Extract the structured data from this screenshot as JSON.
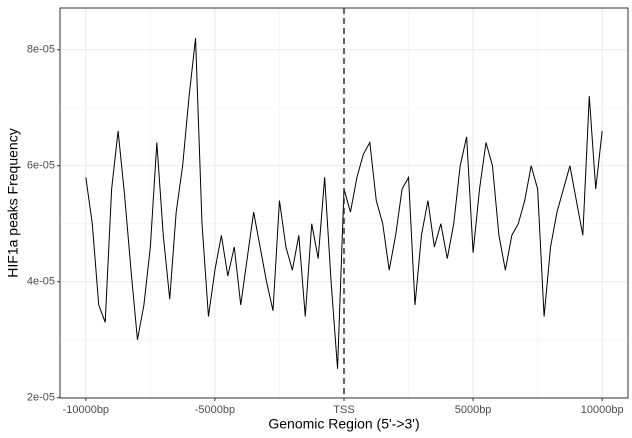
{
  "chart_data": {
    "type": "line",
    "x_label": "Genomic Region (5'->3')",
    "y_label": "HIF1a peaks Frequency",
    "x": [
      -10000,
      -9750,
      -9500,
      -9250,
      -9000,
      -8750,
      -8500,
      -8250,
      -8000,
      -7750,
      -7500,
      -7250,
      -7000,
      -6750,
      -6500,
      -6250,
      -6000,
      -5750,
      -5500,
      -5250,
      -5000,
      -4750,
      -4500,
      -4250,
      -4000,
      -3750,
      -3500,
      -3250,
      -3000,
      -2750,
      -2500,
      -2250,
      -2000,
      -1750,
      -1500,
      -1250,
      -1000,
      -750,
      -500,
      -250,
      0,
      250,
      500,
      750,
      1000,
      1250,
      1500,
      1750,
      2000,
      2250,
      2500,
      2750,
      3000,
      3250,
      3500,
      3750,
      4000,
      4250,
      4500,
      4750,
      5000,
      5250,
      5500,
      5750,
      6000,
      6250,
      6500,
      6750,
      7000,
      7250,
      7500,
      7750,
      8000,
      8250,
      8500,
      8750,
      9000,
      9250,
      9500,
      9750,
      10000
    ],
    "series": [
      {
        "color": "#000000",
        "values": [
          5.8e-05,
          5e-05,
          3.6e-05,
          3.3e-05,
          5.6e-05,
          6.6e-05,
          5.5e-05,
          4.2e-05,
          3e-05,
          3.6e-05,
          4.6e-05,
          6.4e-05,
          4.8e-05,
          3.7e-05,
          5.2e-05,
          6e-05,
          7.2e-05,
          8.2e-05,
          5e-05,
          3.4e-05,
          4.2e-05,
          4.8e-05,
          4.1e-05,
          4.6e-05,
          3.6e-05,
          4.4e-05,
          5.2e-05,
          4.6e-05,
          4e-05,
          3.5e-05,
          5.4e-05,
          4.6e-05,
          4.2e-05,
          4.8e-05,
          3.4e-05,
          5e-05,
          4.4e-05,
          5.8e-05,
          4e-05,
          2.5e-05,
          5.6e-05,
          5.2e-05,
          5.8e-05,
          6.2e-05,
          6.4e-05,
          5.4e-05,
          5e-05,
          4.2e-05,
          4.8e-05,
          5.6e-05,
          5.8e-05,
          3.6e-05,
          4.8e-05,
          5.4e-05,
          4.6e-05,
          5e-05,
          4.4e-05,
          5e-05,
          6e-05,
          6.5e-05,
          4.5e-05,
          5.6e-05,
          6.4e-05,
          6e-05,
          4.8e-05,
          4.2e-05,
          4.8e-05,
          5e-05,
          5.4e-05,
          6e-05,
          5.6e-05,
          3.4e-05,
          4.6e-05,
          5.2e-05,
          5.6e-05,
          6e-05,
          5.4e-05,
          4.8e-05,
          7.2e-05,
          5.6e-05,
          6.6e-05
        ]
      }
    ],
    "xlim": [
      -11000,
      11000
    ],
    "ylim": [
      1.995e-05,
      8.72e-05
    ],
    "xticks": [
      {
        "value": -10000,
        "label": "-10000bp"
      },
      {
        "value": -5000,
        "label": "-5000bp"
      },
      {
        "value": 0,
        "label": "TSS"
      },
      {
        "value": 5000,
        "label": "5000bp"
      },
      {
        "value": 10000,
        "label": "10000bp"
      }
    ],
    "yticks": [
      {
        "value": 2e-05,
        "label": "2e-05"
      },
      {
        "value": 4e-05,
        "label": "4e-05"
      },
      {
        "value": 6e-05,
        "label": "6e-05"
      },
      {
        "value": 8e-05,
        "label": "8e-05"
      }
    ],
    "grid": true,
    "vline": 0
  }
}
